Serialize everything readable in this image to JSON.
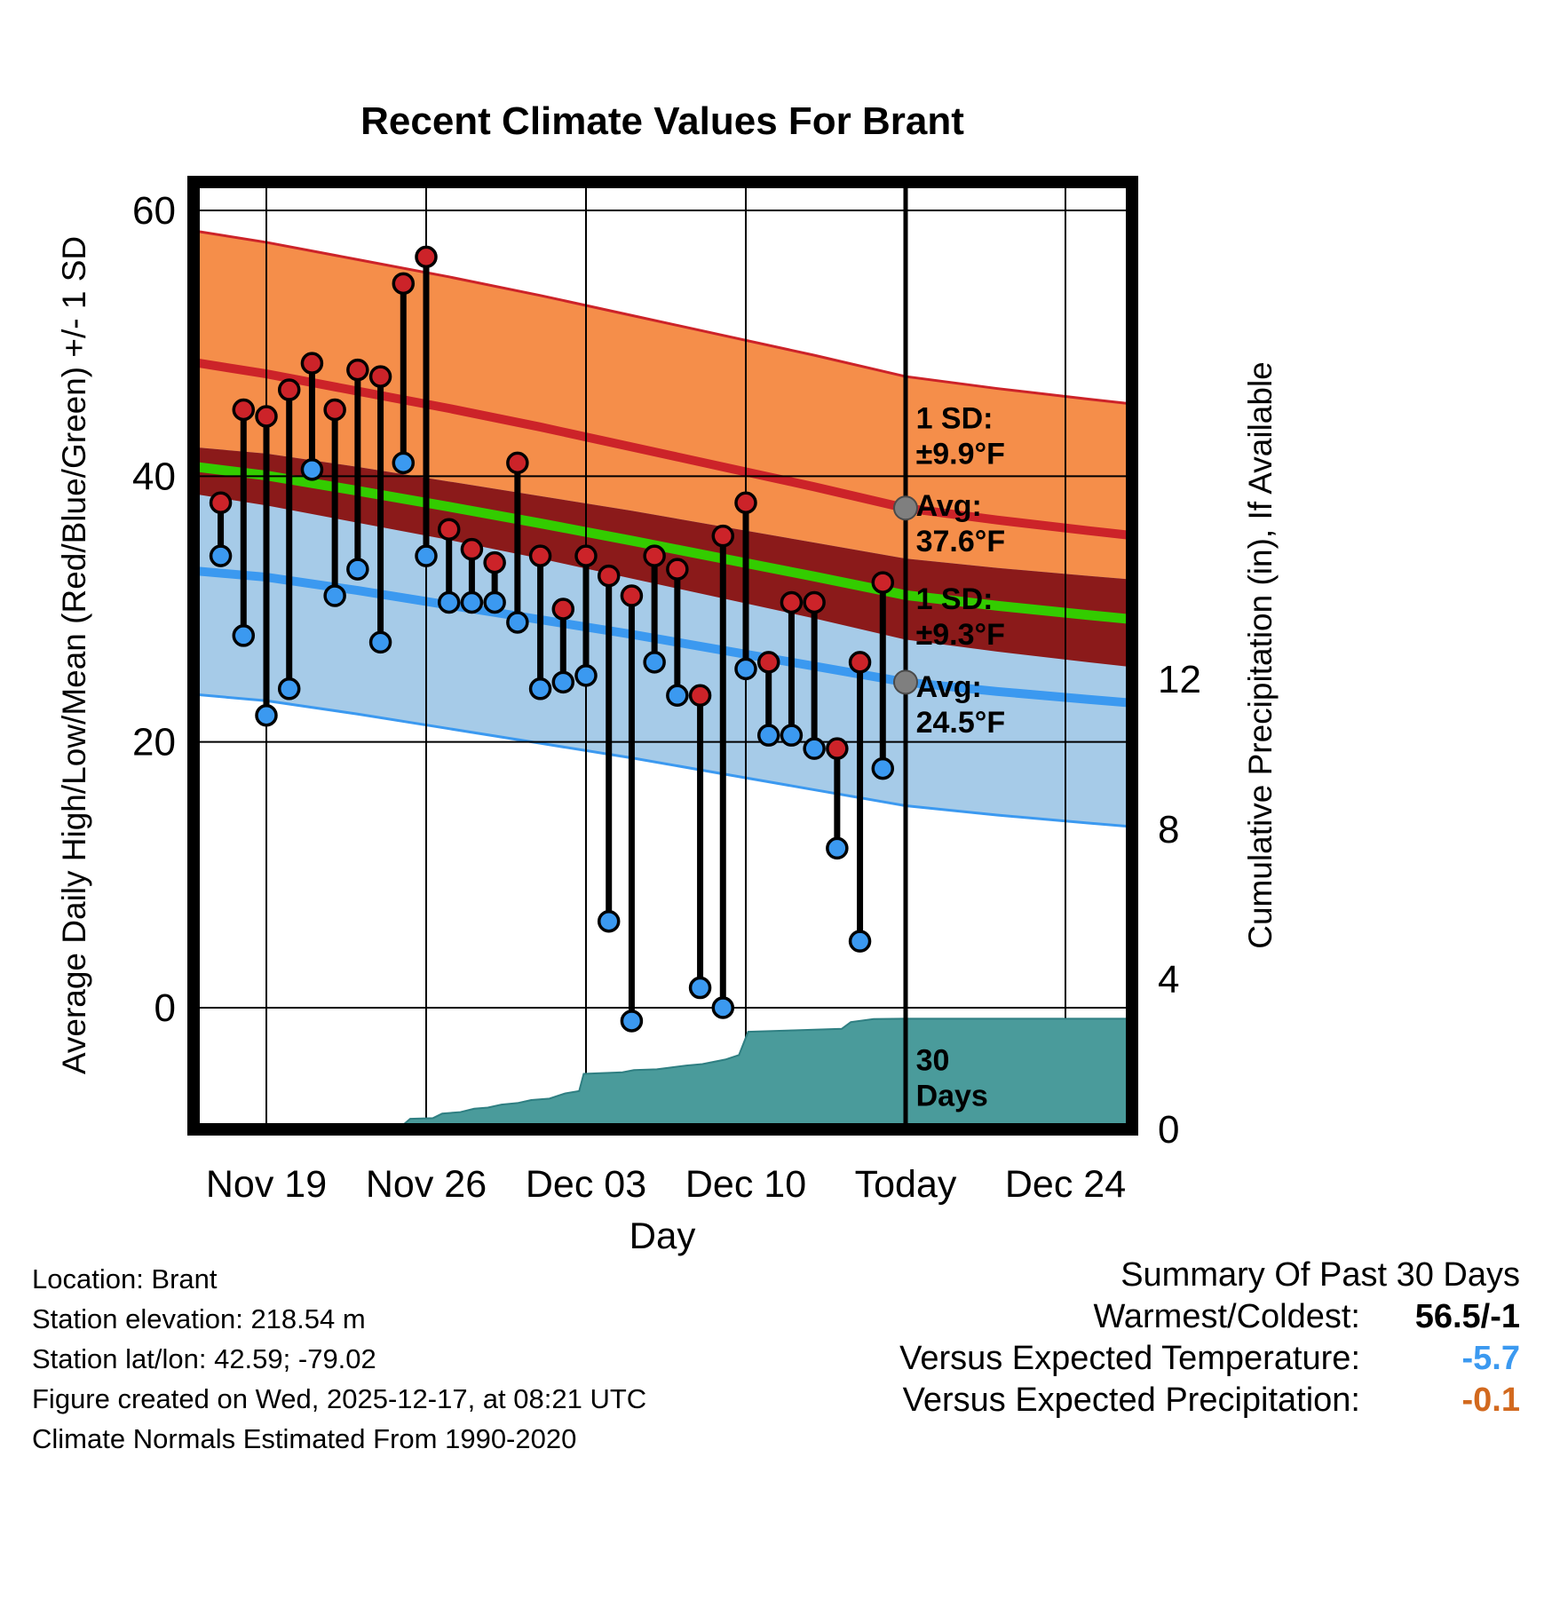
{
  "title": "Recent Climate Values For Brant",
  "axes": {
    "left_label": "Average Daily High/Low/Mean (Red/Blue/Green) +/- 1 SD",
    "right_label": "Cumulative Precipitation (in), If Available",
    "x_label": "Day",
    "left_ticks": [
      0,
      20,
      40,
      60
    ],
    "right_ticks": [
      0,
      4,
      8,
      12
    ],
    "x_ticks": [
      {
        "d": 0,
        "label": "Nov 19"
      },
      {
        "d": 7,
        "label": "Nov 26"
      },
      {
        "d": 14,
        "label": "Dec 03"
      },
      {
        "d": 21,
        "label": "Dec 10"
      },
      {
        "d": 28,
        "label": "Today"
      },
      {
        "d": 35,
        "label": "Dec 24"
      }
    ]
  },
  "chart_data": {
    "type": "line",
    "title": "Recent Climate Values For Brant",
    "x_unit": "d = days since Nov 19",
    "temp_axis_range_f": [
      -9,
      62
    ],
    "precip_axis_range_in": [
      0,
      25
    ],
    "today_d": 28,
    "normals": {
      "sd_high_f": 9.9,
      "sd_low_f": 9.3,
      "avg_high_today_f": 37.6,
      "avg_low_today_f": 24.5,
      "samples": [
        {
          "d": -3.3,
          "avg_high": 48.6,
          "avg_low": 32.9
        },
        {
          "d": 0,
          "avg_high": 47.7,
          "avg_low": 32.4
        },
        {
          "d": 4,
          "avg_high": 46.4,
          "avg_low": 31.4
        },
        {
          "d": 8,
          "avg_high": 45.1,
          "avg_low": 30.3
        },
        {
          "d": 12,
          "avg_high": 43.7,
          "avg_low": 29.2
        },
        {
          "d": 16,
          "avg_high": 42.2,
          "avg_low": 28.1
        },
        {
          "d": 20,
          "avg_high": 40.7,
          "avg_low": 26.9
        },
        {
          "d": 24,
          "avg_high": 39.2,
          "avg_low": 25.7
        },
        {
          "d": 28,
          "avg_high": 37.6,
          "avg_low": 24.5
        },
        {
          "d": 32,
          "avg_high": 36.7,
          "avg_low": 23.8
        },
        {
          "d": 36,
          "avg_high": 35.9,
          "avg_low": 23.2
        },
        {
          "d": 38.1,
          "avg_high": 35.5,
          "avg_low": 22.9
        }
      ]
    },
    "daily": [
      {
        "date": "Nov 17",
        "d": -2,
        "high": 38,
        "low": 34
      },
      {
        "date": "Nov 18",
        "d": -1,
        "high": 45,
        "low": 28
      },
      {
        "date": "Nov 19",
        "d": 0,
        "high": 44.5,
        "low": 22
      },
      {
        "date": "Nov 20",
        "d": 1,
        "high": 46.5,
        "low": 24
      },
      {
        "date": "Nov 21",
        "d": 2,
        "high": 48.5,
        "low": 40.5
      },
      {
        "date": "Nov 22",
        "d": 3,
        "high": 45,
        "low": 31
      },
      {
        "date": "Nov 23",
        "d": 4,
        "high": 48,
        "low": 33
      },
      {
        "date": "Nov 24",
        "d": 5,
        "high": 47.5,
        "low": 27.5
      },
      {
        "date": "Nov 25",
        "d": 6,
        "high": 54.5,
        "low": 41
      },
      {
        "date": "Nov 26",
        "d": 7,
        "high": 56.5,
        "low": 34
      },
      {
        "date": "Nov 27",
        "d": 8,
        "high": 36,
        "low": 30.5
      },
      {
        "date": "Nov 28",
        "d": 9,
        "high": 34.5,
        "low": 30.5
      },
      {
        "date": "Nov 29",
        "d": 10,
        "high": 33.5,
        "low": 30.5
      },
      {
        "date": "Nov 30",
        "d": 11,
        "high": 41,
        "low": 29
      },
      {
        "date": "Dec 01",
        "d": 12,
        "high": 34,
        "low": 24
      },
      {
        "date": "Dec 02",
        "d": 13,
        "high": 30,
        "low": 24.5
      },
      {
        "date": "Dec 03",
        "d": 14,
        "high": 34,
        "low": 25
      },
      {
        "date": "Dec 04",
        "d": 15,
        "high": 32.5,
        "low": 6.5
      },
      {
        "date": "Dec 05",
        "d": 16,
        "high": 31,
        "low": -1
      },
      {
        "date": "Dec 06",
        "d": 17,
        "high": 34,
        "low": 26
      },
      {
        "date": "Dec 07",
        "d": 18,
        "high": 33,
        "low": 23.5
      },
      {
        "date": "Dec 08",
        "d": 19,
        "high": 23.5,
        "low": 1.5
      },
      {
        "date": "Dec 09",
        "d": 20,
        "high": 35.5,
        "low": 0
      },
      {
        "date": "Dec 10",
        "d": 21,
        "high": 38,
        "low": 25.5
      },
      {
        "date": "Dec 11",
        "d": 22,
        "high": 26,
        "low": 20.5
      },
      {
        "date": "Dec 12",
        "d": 23,
        "high": 30.5,
        "low": 20.5
      },
      {
        "date": "Dec 13",
        "d": 24,
        "high": 30.5,
        "low": 19.5
      },
      {
        "date": "Dec 14",
        "d": 25,
        "high": 19.5,
        "low": 12
      },
      {
        "date": "Dec 15",
        "d": 26,
        "high": 26,
        "low": 5
      },
      {
        "date": "Dec 16",
        "d": 27,
        "high": 32,
        "low": 18
      }
    ],
    "precip_cumulative": [
      [
        5.8,
        0.02
      ],
      [
        6.3,
        0.28
      ],
      [
        7.3,
        0.3
      ],
      [
        7.7,
        0.42
      ],
      [
        8.5,
        0.46
      ],
      [
        9.1,
        0.55
      ],
      [
        9.7,
        0.58
      ],
      [
        10.3,
        0.66
      ],
      [
        11.0,
        0.7
      ],
      [
        11.6,
        0.78
      ],
      [
        12.4,
        0.82
      ],
      [
        13.1,
        0.96
      ],
      [
        13.7,
        1.02
      ],
      [
        13.9,
        1.48
      ],
      [
        15.6,
        1.52
      ],
      [
        16.1,
        1.58
      ],
      [
        17.1,
        1.6
      ],
      [
        17.6,
        1.64
      ],
      [
        18.4,
        1.7
      ],
      [
        19.1,
        1.74
      ],
      [
        20.1,
        1.86
      ],
      [
        20.7,
        1.98
      ],
      [
        21.1,
        2.6
      ],
      [
        23.1,
        2.64
      ],
      [
        25.2,
        2.68
      ],
      [
        25.6,
        2.86
      ],
      [
        26.6,
        2.94
      ],
      [
        28.0,
        2.95
      ],
      [
        37.9,
        2.95
      ]
    ],
    "annotations": [
      {
        "d": 28.45,
        "temp": 43.6,
        "lines": [
          "1 SD:",
          "±9.9°F"
        ],
        "color": "#7F7F7F"
      },
      {
        "d": 28.45,
        "temp": 37.0,
        "lines": [
          "Avg:",
          "37.6°F"
        ],
        "color": "#7F7F7F"
      },
      {
        "d": 28.45,
        "temp": 30.0,
        "lines": [
          "1 SD:",
          "±9.3°F"
        ],
        "color": "#7F7F7F"
      },
      {
        "d": 28.45,
        "temp": 23.4,
        "lines": [
          "Avg:",
          "24.5°F"
        ],
        "color": "#7F7F7F"
      },
      {
        "d": 28.45,
        "temp": -4.7,
        "lines": [
          "30",
          "Days"
        ],
        "color": "#000000"
      }
    ]
  },
  "colors": {
    "high_band": "#F58E4A",
    "low_band": "#A6CBE8",
    "overlap_band": "#8B1A1A",
    "high_line": "#CC2329",
    "low_line": "#3B99F0",
    "mean_line": "#33CC00",
    "precip_fill": "#4A9B9B",
    "precip_edge": "#2F7F82",
    "normal_dot": "#7F7F7F",
    "grid": "#000000"
  },
  "footer": {
    "lines": [
      "Location: Brant",
      "Station elevation: 218.54 m",
      "Station lat/lon: 42.59; -79.02",
      "Figure created on Wed, 2025-12-17, at 08:21 UTC",
      "Climate Normals Estimated From 1990-2020"
    ]
  },
  "summary": {
    "heading": "Summary Of Past 30 Days",
    "rows": [
      {
        "label": "Warmest/Coldest:",
        "value": "56.5/-1",
        "color": "#000000"
      },
      {
        "label": "Versus Expected Temperature:",
        "value": "-5.7",
        "color": "#3B99F0"
      },
      {
        "label": "Versus Expected Precipitation:",
        "value": "-0.1",
        "color": "#D2691E"
      }
    ]
  }
}
